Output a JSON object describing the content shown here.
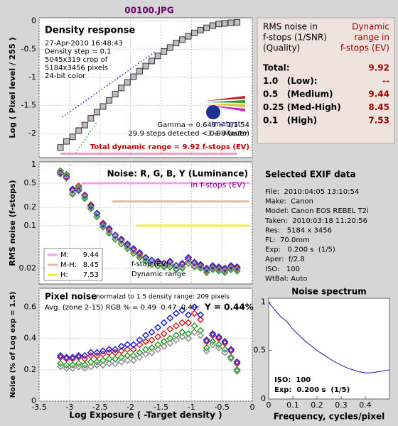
{
  "title": "00100.JPG",
  "chart_data": [
    {
      "type": "scatter",
      "title": "Density response",
      "info": [
        "27-Apr-2010 16:48:43",
        "Density step = 0.1",
        "5045x319 crop of",
        "5184x3456 pixels",
        "24-bit color"
      ],
      "logo": "imatest",
      "version": "3.4  Master",
      "annotations": [
        "Gamma = 0.649 = 1/1.54",
        "29.9 steps detected < 0.98 (auto)"
      ],
      "dynamic_range_label": "Total dynamic range = 9.92 f-stops (EV)",
      "ylabel": "Log ( Pixel level / 255 )",
      "ylim": [
        -2.43,
        0.06
      ],
      "yticks": [
        0,
        -0.5,
        -1,
        -1.5,
        -2
      ],
      "grid": true,
      "x": [
        -3.15,
        -3.05,
        -2.95,
        -2.85,
        -2.75,
        -2.65,
        -2.55,
        -2.45,
        -2.35,
        -2.25,
        -2.15,
        -2.05,
        -1.95,
        -1.85,
        -1.75,
        -1.65,
        -1.55,
        -1.45,
        -1.35,
        -1.25,
        -1.15,
        -1.05,
        -0.95,
        -0.85,
        -0.75,
        -0.65,
        -0.55,
        -0.45,
        -0.35,
        -0.25
      ],
      "series": [
        {
          "color": "#bdbdbd",
          "marker": "square",
          "values": [
            -2.25,
            -2.14,
            -2.06,
            -1.95,
            -1.85,
            -1.73,
            -1.62,
            -1.52,
            -1.41,
            -1.3,
            -1.19,
            -1.09,
            -0.99,
            -0.89,
            -0.8,
            -0.71,
            -0.62,
            -0.54,
            -0.47,
            -0.39,
            -0.33,
            -0.27,
            -0.21,
            -0.16,
            -0.12,
            -0.08,
            -0.05,
            -0.04,
            -0.03,
            -0.02
          ]
        }
      ],
      "fit_lines": [
        {
          "color": "#1a1ad0",
          "x": [
            -3.12,
            -1.6
          ],
          "values": [
            -1.71,
            -0.55
          ]
        },
        {
          "color": "#20b020",
          "x": [
            -2.9,
            -2.55
          ],
          "values": [
            -2.35,
            -1.8
          ]
        }
      ],
      "range_bar": {
        "color": "#e8a0c8",
        "x": [
          -3.15,
          -0.25
        ],
        "value": -2.36
      }
    },
    {
      "type": "scatter",
      "title": "Noise: R, G, B, Y (Luminance)",
      "subtitle": "in f-stops (EV)",
      "ylabel": "RMS noise (f-stops)",
      "log": true,
      "ylim": [
        0.011,
        1.12
      ],
      "yticks": [
        1,
        0.5,
        0.2,
        0.1,
        0.02
      ],
      "grid": true,
      "x": [
        -3.15,
        -3.05,
        -2.95,
        -2.85,
        -2.75,
        -2.65,
        -2.55,
        -2.45,
        -2.35,
        -2.25,
        -2.15,
        -2.05,
        -1.95,
        -1.85,
        -1.75,
        -1.65,
        -1.55,
        -1.45,
        -1.35,
        -1.25,
        -1.15,
        -1.05,
        -0.95,
        -0.85,
        -0.75,
        -0.65,
        -0.55,
        -0.45,
        -0.35,
        -0.25
      ],
      "series": [
        {
          "color": "#e02020",
          "marker": "diamond",
          "values": [
            0.75,
            0.65,
            0.38,
            0.45,
            0.32,
            0.22,
            0.16,
            0.11,
            0.085,
            0.07,
            0.058,
            0.048,
            0.04,
            0.034,
            0.03,
            0.027,
            0.025,
            0.024,
            0.025,
            0.022,
            0.023,
            0.028,
            0.024,
            0.022,
            0.019,
            0.021,
            0.02,
            0.019,
            0.021,
            0.02
          ]
        },
        {
          "color": "#20a020",
          "marker": "diamond",
          "values": [
            0.8,
            0.7,
            0.33,
            0.42,
            0.28,
            0.19,
            0.14,
            0.095,
            0.075,
            0.06,
            0.05,
            0.042,
            0.035,
            0.03,
            0.026,
            0.023,
            0.022,
            0.021,
            0.021,
            0.019,
            0.02,
            0.024,
            0.021,
            0.02,
            0.017,
            0.019,
            0.018,
            0.017,
            0.019,
            0.018
          ]
        },
        {
          "color": "#2020e0",
          "marker": "diamond",
          "values": [
            0.72,
            0.62,
            0.4,
            0.38,
            0.31,
            0.21,
            0.16,
            0.105,
            0.09,
            0.07,
            0.06,
            0.05,
            0.042,
            0.036,
            0.03,
            0.027,
            0.026,
            0.024,
            0.026,
            0.022,
            0.024,
            0.03,
            0.025,
            0.023,
            0.02,
            0.022,
            0.021,
            0.02,
            0.022,
            0.021
          ]
        },
        {
          "color": "#909090",
          "marker": "diamond",
          "values": [
            0.7,
            0.6,
            0.35,
            0.4,
            0.3,
            0.2,
            0.15,
            0.1,
            0.08,
            0.065,
            0.055,
            0.045,
            0.038,
            0.032,
            0.028,
            0.025,
            0.024,
            0.022,
            0.023,
            0.02,
            0.021,
            0.026,
            0.022,
            0.021,
            0.018,
            0.02,
            0.019,
            0.018,
            0.02,
            0.019
          ]
        }
      ],
      "levels": [
        {
          "name": "M:",
          "range": 9.44,
          "color": "#f0a0f0",
          "value": 0.5,
          "x": [
            -2.8,
            -0.05
          ]
        },
        {
          "name": "M-H:",
          "range": 8.45,
          "color": "#f0b890",
          "value": 0.25,
          "x": [
            -2.3,
            -0.05
          ]
        },
        {
          "name": "H:",
          "range": 7.53,
          "color": "#f0f040",
          "value": 0.1,
          "x": [
            -1.9,
            -0.05
          ]
        }
      ],
      "legend_footer": [
        "f-stop (EV)",
        "Dynamic range"
      ]
    },
    {
      "type": "scatter",
      "title": "Pixel noise",
      "subtitle": "normalzd to 1.5 density range: 209 pixels",
      "avg_label": "Avg. (zone 2-15) RGB % = 0.49  0.47  0.49;",
      "y_label": "Y = 0.44%",
      "xlabel": "Log Exposure ( -Target density )",
      "ylabel": "Noise (% of Log exp = 1.5)",
      "xlim": [
        -3.5,
        0
      ],
      "xticks": [
        -3.5,
        -3,
        -2.5,
        -2,
        -1.5,
        -1,
        -0.5,
        0
      ],
      "ylim": [
        0,
        0.72
      ],
      "yticks": [
        0,
        0.2,
        0.4,
        0.6
      ],
      "grid": true,
      "x": [
        -3.15,
        -3.05,
        -2.95,
        -2.85,
        -2.75,
        -2.65,
        -2.55,
        -2.45,
        -2.35,
        -2.25,
        -2.15,
        -2.05,
        -1.95,
        -1.85,
        -1.75,
        -1.65,
        -1.55,
        -1.45,
        -1.35,
        -1.25,
        -1.15,
        -1.05,
        -0.95,
        -0.85,
        -0.75,
        -0.65,
        -0.55,
        -0.45,
        -0.35,
        -0.25
      ],
      "series": [
        {
          "color": "#e02020",
          "marker": "diamond",
          "values": [
            0.28,
            0.27,
            0.27,
            0.28,
            0.27,
            0.29,
            0.29,
            0.3,
            0.31,
            0.31,
            0.32,
            0.33,
            0.33,
            0.36,
            0.38,
            0.39,
            0.41,
            0.43,
            0.46,
            0.48,
            0.5,
            0.5,
            0.56,
            0.52,
            0.38,
            0.42,
            0.4,
            0.37,
            0.32,
            0.24
          ]
        },
        {
          "color": "#20a020",
          "marker": "diamond",
          "values": [
            0.24,
            0.23,
            0.23,
            0.24,
            0.23,
            0.25,
            0.25,
            0.26,
            0.27,
            0.27,
            0.28,
            0.29,
            0.29,
            0.31,
            0.33,
            0.34,
            0.36,
            0.38,
            0.4,
            0.42,
            0.44,
            0.43,
            0.48,
            0.45,
            0.34,
            0.38,
            0.36,
            0.33,
            0.28,
            0.2
          ]
        },
        {
          "color": "#2020e0",
          "marker": "diamond",
          "values": [
            0.29,
            0.28,
            0.28,
            0.29,
            0.29,
            0.31,
            0.31,
            0.32,
            0.33,
            0.33,
            0.35,
            0.36,
            0.36,
            0.39,
            0.42,
            0.44,
            0.47,
            0.5,
            0.53,
            0.56,
            0.58,
            0.55,
            0.6,
            0.55,
            0.39,
            0.43,
            0.41,
            0.38,
            0.33,
            0.25
          ]
        },
        {
          "color": "#909090",
          "marker": "diamond",
          "values": [
            0.22,
            0.21,
            0.21,
            0.22,
            0.21,
            0.22,
            0.23,
            0.23,
            0.24,
            0.24,
            0.25,
            0.26,
            0.26,
            0.28,
            0.3,
            0.31,
            0.33,
            0.35,
            0.37,
            0.39,
            0.41,
            0.4,
            0.44,
            0.42,
            0.32,
            0.36,
            0.34,
            0.31,
            0.27,
            0.19
          ]
        }
      ]
    },
    {
      "type": "line",
      "title": "Noise spectrum",
      "xlabel": "Frequency, cycles/pixel",
      "notes": [
        "ISO:  100",
        "Exp:  0.200 s  (1/5)"
      ],
      "xlim": [
        0,
        0.5
      ],
      "xticks": [
        0,
        0.1,
        0.2,
        0.3,
        0.4
      ],
      "ylim": [
        0,
        1.04
      ],
      "yticks": [
        0,
        0.5,
        1
      ],
      "x": [
        0,
        0.025,
        0.05,
        0.075,
        0.1,
        0.125,
        0.15,
        0.175,
        0.2,
        0.225,
        0.25,
        0.275,
        0.3,
        0.325,
        0.35,
        0.375,
        0.4,
        0.425,
        0.45,
        0.475,
        0.5
      ],
      "series": [
        {
          "color": "#1a1ab0",
          "values": [
            1,
            0.92,
            0.85,
            0.8,
            0.72,
            0.66,
            0.6,
            0.55,
            0.5,
            0.46,
            0.42,
            0.38,
            0.35,
            0.32,
            0.3,
            0.28,
            0.27,
            0.27,
            0.28,
            0.29,
            0.3
          ]
        }
      ]
    }
  ],
  "summary": {
    "header_left": [
      "RMS noise in",
      "f-stops (1/SNR)",
      "(Quality)"
    ],
    "header_right": [
      "Dynamic",
      "range in",
      "f-stops (EV)"
    ],
    "rows": [
      [
        "Total:",
        9.92
      ],
      [
        "1.0   (Low):",
        "--"
      ],
      [
        "0.5   (Medium)",
        9.44
      ],
      [
        "0.25 (Med-High)",
        8.45
      ],
      [
        "0.1   (High)",
        7.53
      ]
    ]
  },
  "exif": {
    "title": "Selected EXIF data",
    "lines": [
      "File:  2010:04:05 13:10:54",
      "Make:  Canon",
      "Model: Canon EOS REBEL T2i",
      "Taken:  2010:03:18 11:20:56",
      "Res:   5184 x 3456",
      "FL:  70.0mm",
      "Exp:   0.200 s  (1/5)",
      "Aper:  f/2.8",
      "ISO:   100",
      "WtBal: Auto"
    ]
  }
}
